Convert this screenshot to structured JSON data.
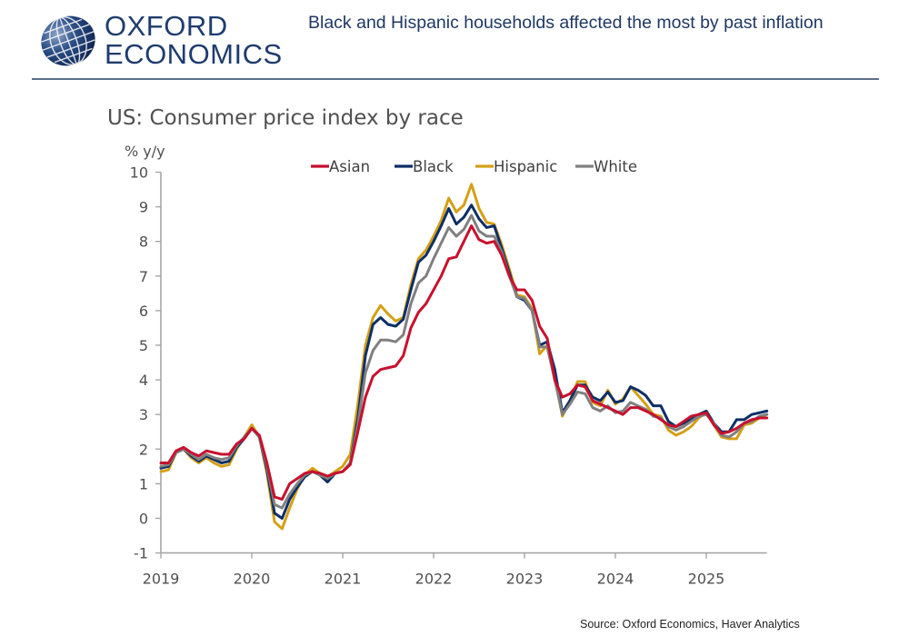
{
  "header": {
    "logo_line1": "OXFORD",
    "logo_line2": "ECONOMICS",
    "headline": "Black and Hispanic households affected the most by past inflation",
    "brand_color": "#1f3c6e"
  },
  "footer": {
    "source": "Source: Oxford Economics, Haver Analytics"
  },
  "chart_data": {
    "type": "line",
    "title": "US: Consumer price index by race",
    "ylabel": "% y/y",
    "xlabel": "",
    "ylim": [
      -1,
      10
    ],
    "yticks": [
      -1,
      0,
      1,
      2,
      3,
      4,
      5,
      6,
      7,
      8,
      9,
      10
    ],
    "xticks": [
      "2019",
      "2020",
      "2021",
      "2022",
      "2023",
      "2024",
      "2025"
    ],
    "x_start": "2019-01",
    "x_end": "2025-09",
    "frequency": "monthly",
    "grid": false,
    "legend_position": "top-center",
    "series": [
      {
        "name": "Asian",
        "color": "#c8102e",
        "values": [
          1.6,
          1.6,
          1.95,
          2.05,
          1.9,
          1.8,
          1.95,
          1.9,
          1.85,
          1.85,
          2.15,
          2.3,
          2.6,
          2.4,
          1.6,
          0.62,
          0.55,
          1.0,
          1.15,
          1.3,
          1.35,
          1.3,
          1.22,
          1.3,
          1.35,
          1.55,
          2.5,
          3.5,
          4.1,
          4.3,
          4.35,
          4.4,
          4.7,
          5.5,
          5.95,
          6.2,
          6.6,
          7.0,
          7.5,
          7.55,
          8.0,
          8.45,
          8.05,
          7.95,
          8.0,
          7.6,
          7.0,
          6.6,
          6.6,
          6.3,
          5.55,
          5.2,
          4.0,
          3.5,
          3.6,
          3.85,
          3.8,
          3.4,
          3.3,
          3.2,
          3.1,
          3.0,
          3.2,
          3.2,
          3.1,
          3.0,
          2.85,
          2.7,
          2.65,
          2.8,
          2.95,
          3.0,
          3.05,
          2.7,
          2.45,
          2.5,
          2.6,
          2.75,
          2.85,
          2.9,
          2.9
        ]
      },
      {
        "name": "Black",
        "color": "#0d2f66",
        "values": [
          1.45,
          1.5,
          1.9,
          2.0,
          1.8,
          1.65,
          1.8,
          1.7,
          1.6,
          1.65,
          2.05,
          2.3,
          2.6,
          2.35,
          1.4,
          0.15,
          0.0,
          0.55,
          0.9,
          1.2,
          1.35,
          1.25,
          1.05,
          1.3,
          1.35,
          1.6,
          2.9,
          4.7,
          5.6,
          5.8,
          5.6,
          5.55,
          5.75,
          6.6,
          7.4,
          7.6,
          8.0,
          8.45,
          8.95,
          8.5,
          8.7,
          9.05,
          8.65,
          8.4,
          8.45,
          7.8,
          7.1,
          6.4,
          6.3,
          6.0,
          5.0,
          5.1,
          4.3,
          3.05,
          3.4,
          3.85,
          3.85,
          3.5,
          3.4,
          3.65,
          3.35,
          3.4,
          3.8,
          3.7,
          3.55,
          3.25,
          3.25,
          2.8,
          2.65,
          2.75,
          2.85,
          3.0,
          3.1,
          2.75,
          2.5,
          2.5,
          2.85,
          2.85,
          3.0,
          3.05,
          3.1
        ]
      },
      {
        "name": "Hispanic",
        "color": "#d4a017",
        "values": [
          1.35,
          1.4,
          1.9,
          2.0,
          1.75,
          1.6,
          1.75,
          1.6,
          1.5,
          1.55,
          2.0,
          2.35,
          2.7,
          2.35,
          1.3,
          -0.1,
          -0.3,
          0.3,
          0.85,
          1.25,
          1.45,
          1.3,
          1.2,
          1.35,
          1.5,
          1.85,
          3.3,
          5.0,
          5.8,
          6.15,
          5.9,
          5.7,
          5.8,
          6.75,
          7.5,
          7.75,
          8.15,
          8.6,
          9.25,
          8.85,
          9.05,
          9.65,
          8.95,
          8.55,
          8.5,
          7.9,
          7.2,
          6.45,
          6.4,
          6.05,
          4.75,
          5.0,
          4.1,
          2.95,
          3.4,
          3.95,
          3.95,
          3.35,
          3.25,
          3.7,
          3.3,
          3.45,
          3.8,
          3.55,
          3.3,
          3.0,
          2.95,
          2.55,
          2.4,
          2.5,
          2.65,
          2.9,
          3.05,
          2.7,
          2.35,
          2.3,
          2.3,
          2.7,
          2.75,
          2.9,
          3.0
        ]
      },
      {
        "name": "White",
        "color": "#808080",
        "values": [
          1.5,
          1.55,
          1.9,
          2.0,
          1.85,
          1.7,
          1.85,
          1.75,
          1.7,
          1.75,
          2.1,
          2.35,
          2.6,
          2.35,
          1.5,
          0.4,
          0.3,
          0.7,
          1.0,
          1.25,
          1.35,
          1.25,
          1.15,
          1.3,
          1.35,
          1.6,
          2.7,
          4.2,
          4.85,
          5.15,
          5.15,
          5.1,
          5.3,
          6.2,
          6.8,
          7.0,
          7.5,
          7.95,
          8.4,
          8.15,
          8.35,
          8.75,
          8.3,
          8.15,
          8.15,
          7.7,
          7.0,
          6.4,
          6.35,
          6.0,
          4.95,
          4.95,
          4.0,
          3.0,
          3.3,
          3.65,
          3.6,
          3.2,
          3.1,
          3.25,
          3.05,
          3.1,
          3.35,
          3.25,
          3.15,
          2.95,
          2.9,
          2.65,
          2.55,
          2.65,
          2.8,
          2.95,
          3.0,
          2.75,
          2.4,
          2.35,
          2.5,
          2.75,
          2.8,
          2.95,
          3.0
        ]
      }
    ]
  }
}
